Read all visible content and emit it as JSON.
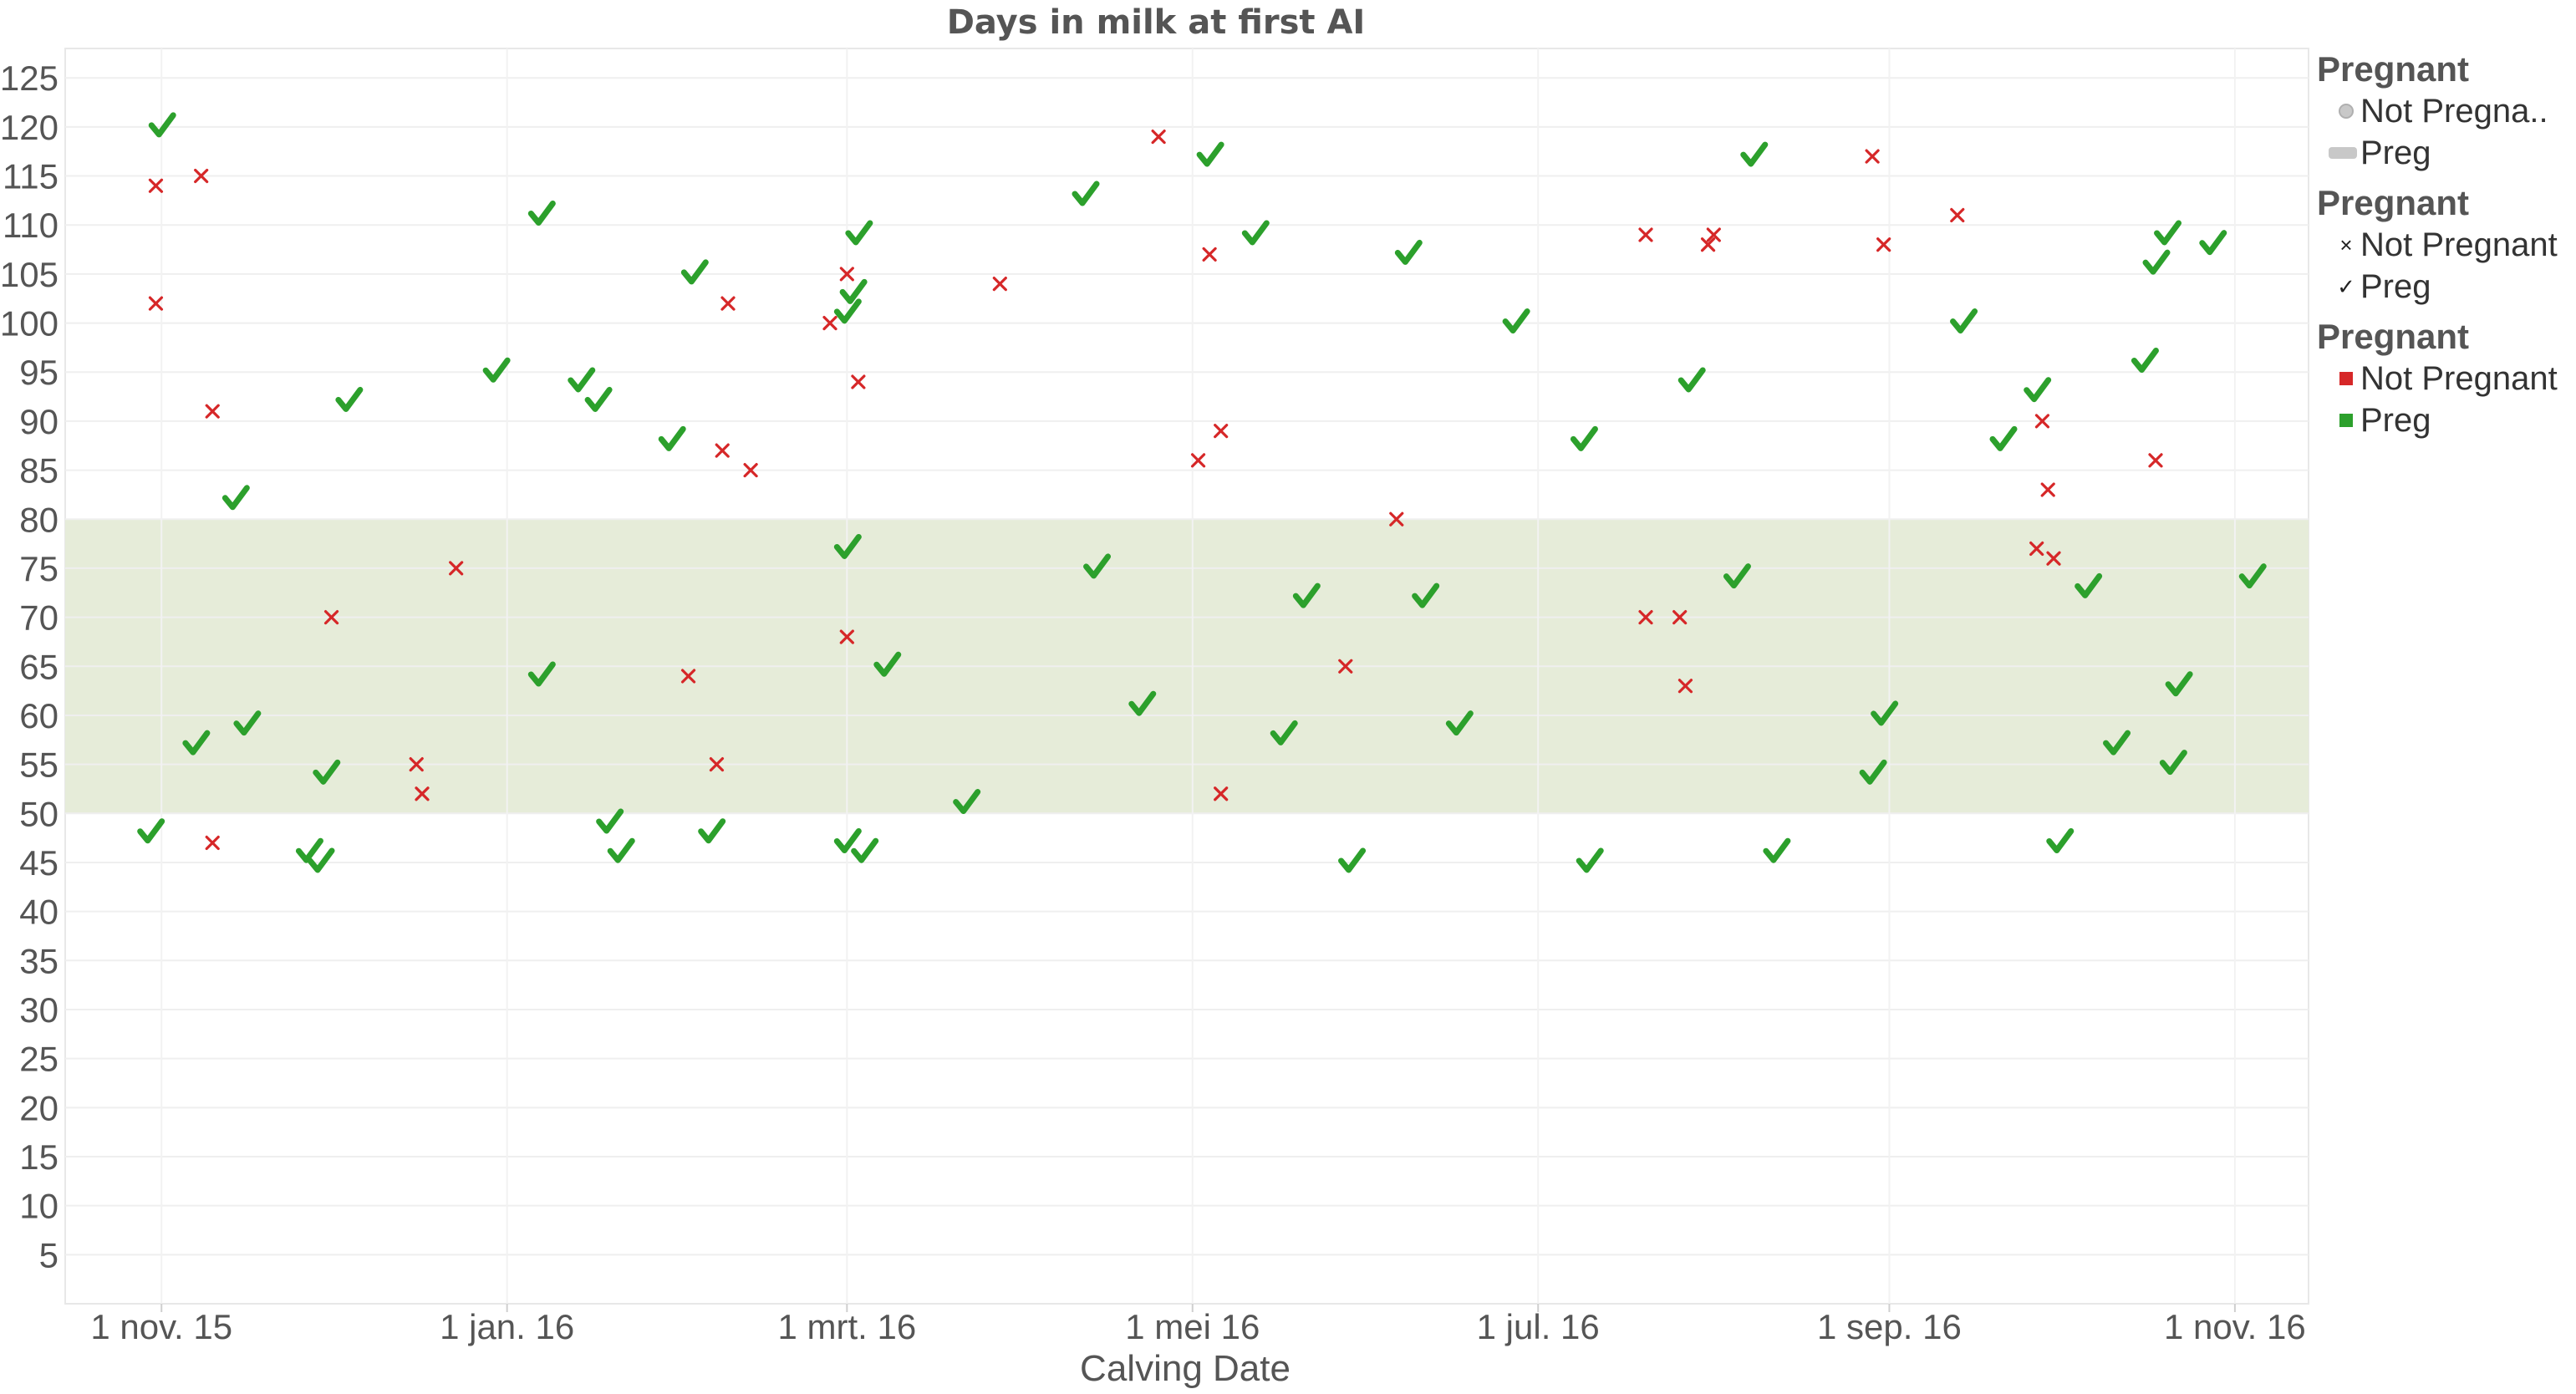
{
  "chart_data": {
    "type": "scatter",
    "title": "Days in milk at first AI",
    "xlabel": "Calving Date",
    "ylabel": "",
    "x_ticks": [
      "1 nov. 15",
      "1 jan. 16",
      "1 mrt. 16",
      "1 mei 16",
      "1 jul. 16",
      "1 sep. 16",
      "1 nov. 16"
    ],
    "x_range": [
      "2015-10-15",
      "2016-11-14"
    ],
    "ylim": [
      0,
      128
    ],
    "y_ticks": [
      5,
      10,
      15,
      20,
      25,
      30,
      35,
      40,
      45,
      50,
      55,
      60,
      65,
      70,
      75,
      80,
      85,
      90,
      95,
      100,
      105,
      110,
      115,
      120,
      125
    ],
    "reference_band": {
      "from": 50,
      "to": 80,
      "color": "#e6ecd9"
    },
    "grid": true,
    "legend_position": "right",
    "series": [
      {
        "name": "Not Pregnant",
        "marker": "x",
        "color": "#d62728",
        "points": [
          [
            "2015-10-31",
            114
          ],
          [
            "2015-10-31",
            102
          ],
          [
            "2015-11-08",
            115
          ],
          [
            "2015-11-10",
            91
          ],
          [
            "2015-11-10",
            47
          ],
          [
            "2015-12-01",
            70
          ],
          [
            "2015-12-16",
            55
          ],
          [
            "2015-12-17",
            52
          ],
          [
            "2015-12-23",
            75
          ],
          [
            "2016-02-02",
            64
          ],
          [
            "2016-02-07",
            55
          ],
          [
            "2016-02-09",
            102
          ],
          [
            "2016-02-08",
            87
          ],
          [
            "2016-02-13",
            85
          ],
          [
            "2016-02-27",
            100
          ],
          [
            "2016-03-01",
            105
          ],
          [
            "2016-03-01",
            68
          ],
          [
            "2016-03-03",
            94
          ],
          [
            "2016-03-28",
            104
          ],
          [
            "2016-04-25",
            119
          ],
          [
            "2016-05-02",
            86
          ],
          [
            "2016-05-04",
            107
          ],
          [
            "2016-05-06",
            89
          ],
          [
            "2016-05-06",
            52
          ],
          [
            "2016-05-28",
            65
          ],
          [
            "2016-06-06",
            80
          ],
          [
            "2016-07-20",
            109
          ],
          [
            "2016-07-20",
            70
          ],
          [
            "2016-07-26",
            70
          ],
          [
            "2016-07-27",
            63
          ],
          [
            "2016-07-31",
            108
          ],
          [
            "2016-08-01",
            109
          ],
          [
            "2016-08-29",
            117
          ],
          [
            "2016-08-31",
            108
          ],
          [
            "2016-09-13",
            111
          ],
          [
            "2016-09-27",
            77
          ],
          [
            "2016-09-28",
            90
          ],
          [
            "2016-09-29",
            83
          ],
          [
            "2016-09-30",
            76
          ],
          [
            "2016-10-18",
            86
          ]
        ]
      },
      {
        "name": "Preg",
        "marker": "check",
        "color": "#2ca02c",
        "points": [
          [
            "2015-10-30",
            48
          ],
          [
            "2015-11-01",
            120
          ],
          [
            "2015-11-07",
            57
          ],
          [
            "2015-11-14",
            82
          ],
          [
            "2015-11-16",
            59
          ],
          [
            "2015-11-27",
            46
          ],
          [
            "2015-11-29",
            45
          ],
          [
            "2015-11-30",
            54
          ],
          [
            "2015-12-04",
            92
          ],
          [
            "2015-12-30",
            95
          ],
          [
            "2016-01-07",
            111
          ],
          [
            "2016-01-07",
            64
          ],
          [
            "2016-01-14",
            94
          ],
          [
            "2016-01-17",
            92
          ],
          [
            "2016-01-19",
            49
          ],
          [
            "2016-01-21",
            46
          ],
          [
            "2016-01-30",
            88
          ],
          [
            "2016-02-03",
            105
          ],
          [
            "2016-02-06",
            48
          ],
          [
            "2016-03-01",
            47
          ],
          [
            "2016-03-01",
            77
          ],
          [
            "2016-03-01",
            101
          ],
          [
            "2016-03-02",
            103
          ],
          [
            "2016-03-03",
            109
          ],
          [
            "2016-03-04",
            46
          ],
          [
            "2016-03-08",
            65
          ],
          [
            "2016-03-22",
            51
          ],
          [
            "2016-04-12",
            113
          ],
          [
            "2016-04-14",
            75
          ],
          [
            "2016-04-22",
            61
          ],
          [
            "2016-05-04",
            117
          ],
          [
            "2016-05-12",
            109
          ],
          [
            "2016-05-21",
            72
          ],
          [
            "2016-05-17",
            58
          ],
          [
            "2016-05-29",
            45
          ],
          [
            "2016-06-08",
            107
          ],
          [
            "2016-06-11",
            72
          ],
          [
            "2016-06-17",
            59
          ],
          [
            "2016-06-27",
            100
          ],
          [
            "2016-07-09",
            88
          ],
          [
            "2016-07-10",
            45
          ],
          [
            "2016-07-28",
            94
          ],
          [
            "2016-08-05",
            74
          ],
          [
            "2016-08-08",
            117
          ],
          [
            "2016-08-12",
            46
          ],
          [
            "2016-08-29",
            54
          ],
          [
            "2016-08-31",
            60
          ],
          [
            "2016-09-14",
            100
          ],
          [
            "2016-09-21",
            88
          ],
          [
            "2016-09-27",
            93
          ],
          [
            "2016-10-01",
            47
          ],
          [
            "2016-10-06",
            73
          ],
          [
            "2016-10-11",
            57
          ],
          [
            "2016-10-16",
            96
          ],
          [
            "2016-10-18",
            106
          ],
          [
            "2016-10-20",
            109
          ],
          [
            "2016-10-21",
            55
          ],
          [
            "2016-10-22",
            63
          ],
          [
            "2016-10-28",
            108
          ],
          [
            "2016-11-04",
            74
          ]
        ]
      }
    ]
  },
  "legend": {
    "sections": [
      {
        "title": "Pregnant",
        "kind": "size",
        "items": [
          {
            "label": "Not Pregna..",
            "icon": "circle-icon"
          },
          {
            "label": "Preg",
            "icon": "bar-icon"
          }
        ]
      },
      {
        "title": "Pregnant",
        "kind": "shape",
        "items": [
          {
            "label": "Not Pregnant",
            "icon": "x-icon"
          },
          {
            "label": "Preg",
            "icon": "check-icon"
          }
        ]
      },
      {
        "title": "Pregnant",
        "kind": "color",
        "items": [
          {
            "label": "Not Pregnant",
            "icon": "red-swatch-icon",
            "color": "#d62728"
          },
          {
            "label": "Preg",
            "icon": "green-swatch-icon",
            "color": "#2ca02c"
          }
        ]
      }
    ]
  }
}
